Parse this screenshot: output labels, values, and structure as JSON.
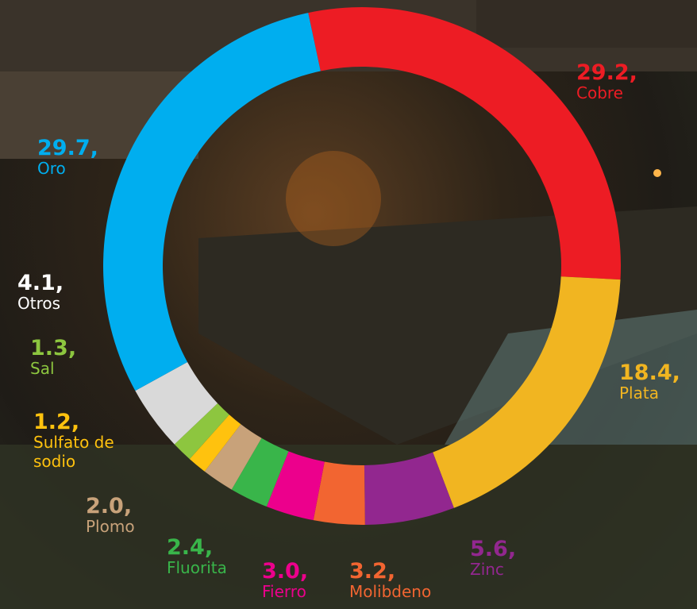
{
  "chart_data": {
    "type": "donut",
    "categories": [
      "Cobre",
      "Plata",
      "Zinc",
      "Molibdeno",
      "Fierro",
      "Fluorita",
      "Plomo",
      "Sulfato de sodio",
      "Sal",
      "Otros",
      "Oro"
    ],
    "values": [
      29.2,
      18.4,
      5.6,
      3.2,
      3.0,
      2.4,
      2.0,
      1.2,
      1.3,
      4.1,
      29.7
    ],
    "value_labels": [
      "29.2,",
      "18.4,",
      "5.6,",
      "3.2,",
      "3.0,",
      "2.4,",
      "2.0,",
      "1.2,",
      "1.3,",
      "4.1,",
      "29.7,"
    ],
    "colors": [
      "#ed1c24",
      "#f1b521",
      "#92278f",
      "#f26531",
      "#ec008c",
      "#39b54a",
      "#c8a27a",
      "#ffc20e",
      "#8dc63f",
      "#d9d9d9",
      "#00aeef"
    ]
  }
}
